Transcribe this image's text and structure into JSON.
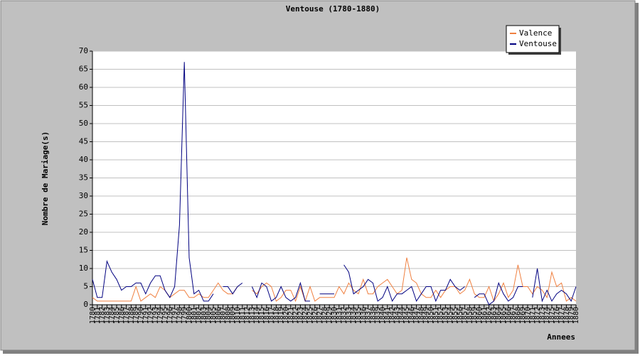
{
  "chart_data": {
    "type": "line",
    "title": "Ventouse (1780-1880)",
    "ylabel": "Nombre de Mariage(s)",
    "xlabel": "Annees",
    "categories": [
      1780,
      1781,
      1782,
      1783,
      1784,
      1785,
      1786,
      1787,
      1788,
      1789,
      1790,
      1791,
      1792,
      1793,
      1794,
      1795,
      1796,
      1797,
      1798,
      1799,
      1800,
      1801,
      1802,
      1803,
      1804,
      1805,
      1806,
      1807,
      1808,
      1809,
      1810,
      1811,
      1812,
      1813,
      1814,
      1815,
      1816,
      1817,
      1818,
      1819,
      1820,
      1821,
      1822,
      1823,
      1824,
      1825,
      1826,
      1827,
      1828,
      1829,
      1830,
      1831,
      1832,
      1833,
      1834,
      1835,
      1836,
      1837,
      1838,
      1839,
      1840,
      1841,
      1842,
      1843,
      1844,
      1845,
      1846,
      1847,
      1848,
      1849,
      1850,
      1851,
      1852,
      1853,
      1854,
      1855,
      1856,
      1857,
      1858,
      1859,
      1860,
      1861,
      1862,
      1863,
      1864,
      1865,
      1866,
      1867,
      1868,
      1869,
      1870,
      1871,
      1872,
      1873,
      1874,
      1875,
      1876,
      1877,
      1878,
      1879,
      1880
    ],
    "series": [
      {
        "name": "Valence",
        "color": "#f08040",
        "values": [
          2,
          1,
          1,
          1,
          1,
          1,
          1,
          1,
          1,
          5,
          1,
          2,
          3,
          2,
          5,
          4,
          2,
          3,
          4,
          4,
          2,
          2,
          3,
          2,
          2,
          4,
          6,
          4,
          3,
          3,
          5,
          null,
          null,
          4,
          3,
          5,
          6,
          5,
          1,
          2,
          4,
          4,
          1,
          5,
          1,
          5,
          1,
          2,
          2,
          2,
          2,
          5,
          3,
          6,
          4,
          3,
          7,
          3,
          3,
          5,
          6,
          7,
          5,
          3,
          4,
          13,
          7,
          6,
          3,
          2,
          2,
          4,
          2,
          4,
          5,
          5,
          3,
          4,
          7,
          3,
          2,
          2,
          5,
          1,
          3,
          6,
          2,
          4,
          11,
          5,
          5,
          3,
          5,
          4,
          2,
          9,
          5,
          6,
          1,
          2,
          1
        ]
      },
      {
        "name": "Ventouse",
        "color": "#000080",
        "values": [
          7,
          2,
          2,
          12,
          9,
          7,
          4,
          5,
          5,
          6,
          6,
          3,
          6,
          8,
          8,
          4,
          2,
          5,
          22,
          67,
          13,
          3,
          4,
          1,
          1,
          3,
          null,
          5,
          5,
          3,
          5,
          6,
          null,
          5,
          2,
          6,
          5,
          1,
          2,
          5,
          2,
          1,
          2,
          6,
          1,
          1,
          null,
          3,
          3,
          3,
          3,
          null,
          11,
          9,
          3,
          4,
          5,
          7,
          6,
          1,
          2,
          5,
          1,
          3,
          3,
          4,
          5,
          1,
          3,
          5,
          5,
          1,
          4,
          4,
          7,
          5,
          4,
          5,
          null,
          2,
          3,
          3,
          0,
          1,
          6,
          3,
          1,
          2,
          5,
          5,
          null,
          2,
          10,
          1,
          4,
          1,
          3,
          4,
          3,
          1,
          5
        ]
      }
    ],
    "ylim": [
      0,
      70
    ],
    "yticks": [
      0,
      5,
      10,
      15,
      20,
      25,
      30,
      35,
      40,
      45,
      50,
      55,
      60,
      65,
      70
    ],
    "grid": true,
    "legend": "top-right"
  }
}
